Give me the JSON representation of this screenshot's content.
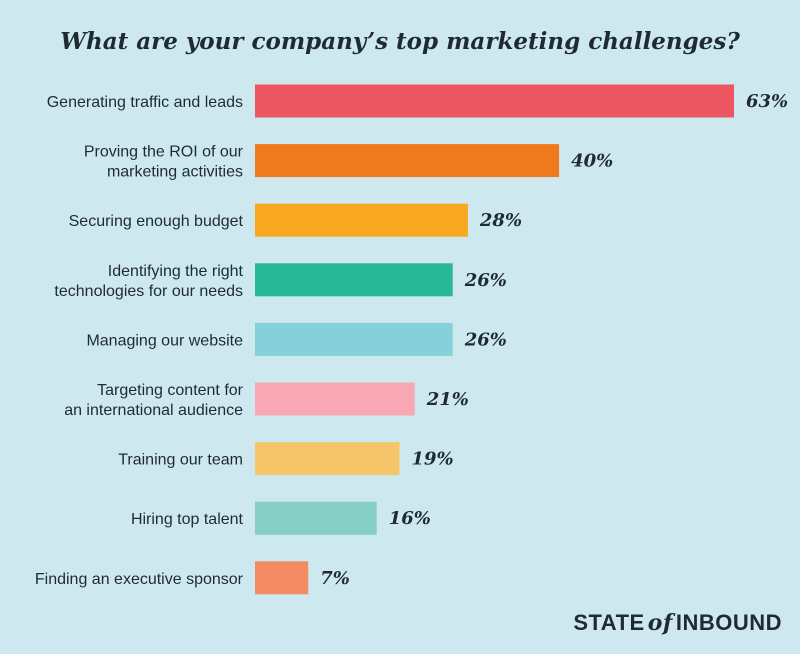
{
  "chart_data": {
    "type": "bar",
    "orientation": "horizontal",
    "title": "What are your company’s top marketing challenges?",
    "categories": [
      [
        "Generating traffic and leads"
      ],
      [
        "Proving the ROI of our",
        "marketing activities"
      ],
      [
        "Securing enough budget"
      ],
      [
        "Identifying the right",
        "technologies for our needs"
      ],
      [
        "Managing our website"
      ],
      [
        "Targeting content for",
        "an international audience"
      ],
      [
        "Training our team"
      ],
      [
        "Hiring top talent"
      ],
      [
        "Finding an executive sponsor"
      ]
    ],
    "values": [
      63,
      40,
      28,
      26,
      26,
      21,
      19,
      16,
      7
    ],
    "value_labels": [
      "63%",
      "40%",
      "28%",
      "26%",
      "26%",
      "21%",
      "19%",
      "16%",
      "7%"
    ],
    "colors": [
      "#ec5562",
      "#ef7a1e",
      "#f8a81e",
      "#27b996",
      "#86d0db",
      "#f7a8b4",
      "#f5c56a",
      "#86cfc6",
      "#f28b61"
    ],
    "xlim": [
      0,
      63
    ],
    "grid": false,
    "legend": "none"
  },
  "brand": {
    "state": "STATE",
    "of": "of",
    "inbound": "INBOUND"
  }
}
